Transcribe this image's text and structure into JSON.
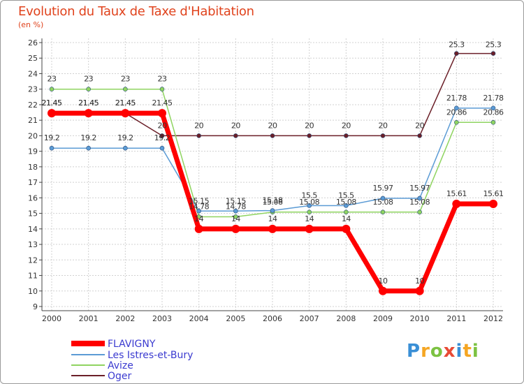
{
  "header": {
    "title": "Evolution du Taux de Taxe d'Habitation",
    "subtitle": "(en %)"
  },
  "logo": {
    "letters": [
      "P",
      "r",
      "o",
      "x",
      "i",
      "t",
      "i"
    ],
    "colors": [
      "#3a8fd6",
      "#f5a623",
      "#7cc242",
      "#e84a35",
      "#3a8fd6",
      "#f5a623",
      "#7cc242"
    ]
  },
  "chart_data": {
    "type": "line",
    "x": [
      "2000",
      "2001",
      "2002",
      "2003",
      "2004",
      "2005",
      "2006",
      "2007",
      "2008",
      "2009",
      "2010",
      "2011",
      "2012"
    ],
    "ylim": [
      9,
      26
    ],
    "yticks": [
      9,
      10,
      11,
      12,
      13,
      14,
      15,
      16,
      17,
      18,
      19,
      20,
      21,
      22,
      23,
      24,
      25,
      26
    ],
    "grid": true,
    "legend": "bottom-left",
    "series": [
      {
        "name": "FLAVIGNY",
        "color": "#ff0000",
        "width": 7,
        "marker": 6,
        "values": [
          21.45,
          21.45,
          21.45,
          21.45,
          14,
          14,
          14,
          14,
          14,
          10,
          10,
          15.61,
          15.61
        ],
        "labels": [
          "21.45",
          "21.45",
          "21.45",
          "21.45",
          "14",
          "14",
          "14",
          "14",
          "14",
          "10",
          "10",
          "15.61",
          "15.61"
        ]
      },
      {
        "name": "Les Istres-et-Bury",
        "color": "#5b9bd5",
        "width": 1.5,
        "marker": 3,
        "values": [
          19.2,
          19.2,
          19.2,
          19.2,
          15.15,
          15.15,
          15.18,
          15.5,
          15.5,
          15.97,
          15.97,
          21.78,
          21.78
        ],
        "labels": [
          "19.2",
          "19.2",
          "19.2",
          "19.2",
          "15.15",
          "15.15",
          "15.18",
          "15.5",
          "15.5",
          "15.97",
          "15.97",
          "21.78",
          "21.78"
        ]
      },
      {
        "name": "Avize",
        "color": "#8fd460",
        "width": 1.5,
        "marker": 3,
        "values": [
          23,
          23,
          23,
          23,
          14.78,
          14.78,
          15.08,
          15.08,
          15.08,
          15.08,
          15.08,
          20.86,
          20.86
        ],
        "labels": [
          "23",
          "23",
          "23",
          "23",
          "14.78",
          "14.78",
          "15.08",
          "15.08",
          "15.08",
          "15.08",
          "15.08",
          "20.86",
          "20.86"
        ]
      },
      {
        "name": "Oger",
        "color": "#6b1f28",
        "width": 1.5,
        "marker": 3,
        "values": [
          21.45,
          21.45,
          21.45,
          20,
          20,
          20,
          20,
          20,
          20,
          20,
          20,
          25.3,
          25.3
        ],
        "labels": [
          "21.45",
          "21.45",
          "21.45",
          "20",
          "20",
          "20",
          "20",
          "20",
          "20",
          "20",
          "20",
          "25.3",
          "25.3"
        ]
      }
    ]
  }
}
